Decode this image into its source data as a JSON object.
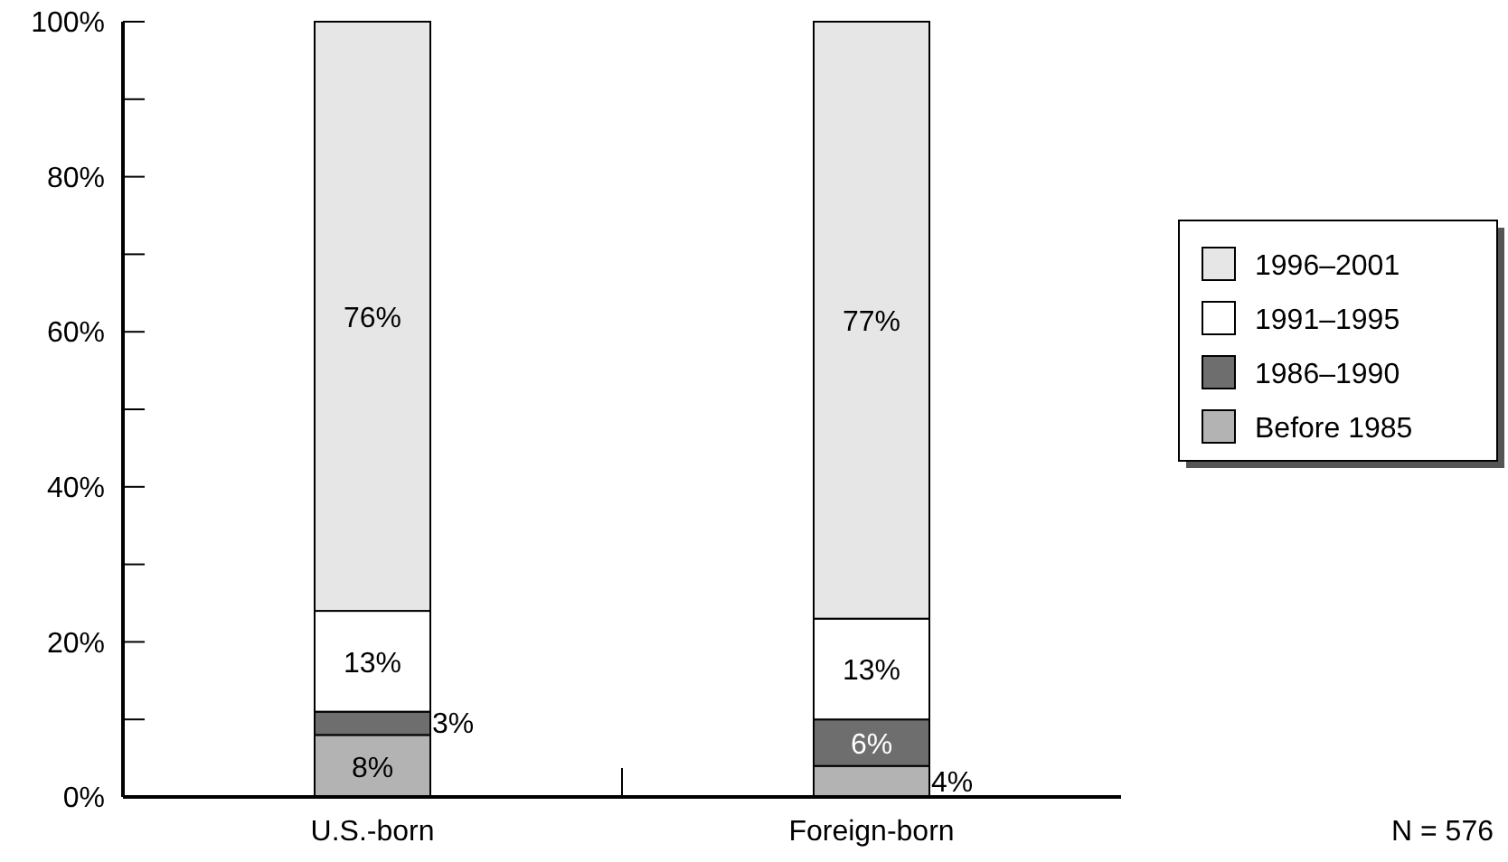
{
  "chart_data": {
    "type": "bar",
    "stacked": true,
    "categories": [
      "U.S.-born",
      "Foreign-born"
    ],
    "series": [
      {
        "name": "Before 1985",
        "color": "#b3b3b3",
        "values": [
          8,
          4
        ],
        "value_labels": [
          "8%",
          "4%"
        ]
      },
      {
        "name": "1986–1990",
        "color": "#6e6e6e",
        "values": [
          3,
          6
        ],
        "value_labels": [
          "3%",
          "6%"
        ]
      },
      {
        "name": "1991–1995",
        "color": "#ffffff",
        "values": [
          13,
          13
        ],
        "value_labels": [
          "13%",
          "13%"
        ]
      },
      {
        "name": "1996–2001",
        "color": "#e6e6e6",
        "values": [
          76,
          77
        ],
        "value_labels": [
          "76%",
          "77%"
        ]
      }
    ],
    "ylim": [
      0,
      100
    ],
    "yticks": [
      {
        "value": 0,
        "label": "0%"
      },
      {
        "value": 10,
        "label": null
      },
      {
        "value": 20,
        "label": "20%"
      },
      {
        "value": 30,
        "label": null
      },
      {
        "value": 40,
        "label": "40%"
      },
      {
        "value": 50,
        "label": null
      },
      {
        "value": 60,
        "label": "60%"
      },
      {
        "value": 70,
        "label": null
      },
      {
        "value": 80,
        "label": "80%"
      },
      {
        "value": 90,
        "label": null
      },
      {
        "value": 100,
        "label": "100%"
      }
    ],
    "grid": false,
    "legend": "right",
    "annotations": [
      "N = 576"
    ]
  }
}
